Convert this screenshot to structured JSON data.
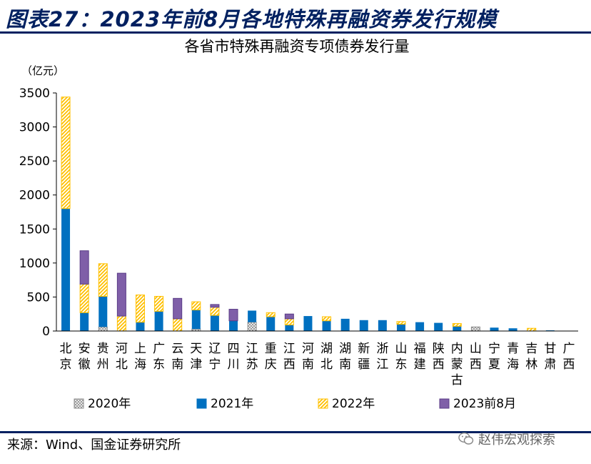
{
  "figure_title": "图表27：2023年前8月各地特殊再融资券发行规模",
  "source": "来源：Wind、国金证券研究所",
  "watermark": "赵伟宏观探索",
  "colors": {
    "title": "#002060",
    "2020": "#a6a6a6",
    "2021": "#0070c0",
    "2022": "#ffc000",
    "2023": "#7f5fa8",
    "2023_edge": "#5b3d87"
  },
  "chart_data": {
    "type": "bar",
    "stacked": true,
    "title": "各省市特殊再融资专项债券发行量",
    "ylabel": "（亿元）",
    "ylim": [
      0,
      3500
    ],
    "yticks": [
      0,
      500,
      1000,
      1500,
      2000,
      2500,
      3000,
      3500
    ],
    "grid": false,
    "legend_position": "bottom",
    "categories": [
      "北京",
      "安徽",
      "贵州",
      "河北",
      "上海",
      "广东",
      "云南",
      "天津",
      "辽宁",
      "四川",
      "江苏",
      "重庆",
      "江西",
      "河南",
      "湖北",
      "湖南",
      "新疆",
      "浙江",
      "山东",
      "福建",
      "陕西",
      "内蒙古",
      "山西",
      "宁夏",
      "青海",
      "吉林",
      "甘肃",
      "广西"
    ],
    "series": [
      {
        "name": "2020年",
        "pattern": "crosshatch",
        "values": [
          0,
          0,
          60,
          0,
          0,
          0,
          0,
          30,
          0,
          0,
          130,
          0,
          0,
          0,
          0,
          0,
          0,
          0,
          0,
          0,
          0,
          0,
          60,
          0,
          0,
          0,
          0,
          0
        ]
      },
      {
        "name": "2021年",
        "pattern": "solid",
        "values": [
          1800,
          270,
          450,
          0,
          130,
          290,
          0,
          280,
          230,
          150,
          170,
          210,
          90,
          220,
          150,
          180,
          160,
          160,
          100,
          130,
          120,
          70,
          0,
          50,
          40,
          0,
          10,
          5
        ]
      },
      {
        "name": "2022年",
        "pattern": "diagonal",
        "values": [
          1640,
          420,
          480,
          220,
          400,
          220,
          180,
          120,
          120,
          0,
          0,
          60,
          90,
          0,
          60,
          0,
          0,
          0,
          40,
          0,
          0,
          40,
          0,
          0,
          0,
          40,
          0,
          0
        ]
      },
      {
        "name": "2023前8月",
        "pattern": "solid",
        "values": [
          0,
          490,
          0,
          630,
          0,
          0,
          300,
          0,
          40,
          170,
          0,
          0,
          70,
          0,
          0,
          0,
          0,
          0,
          0,
          0,
          0,
          0,
          0,
          0,
          0,
          0,
          0,
          0
        ]
      }
    ]
  }
}
